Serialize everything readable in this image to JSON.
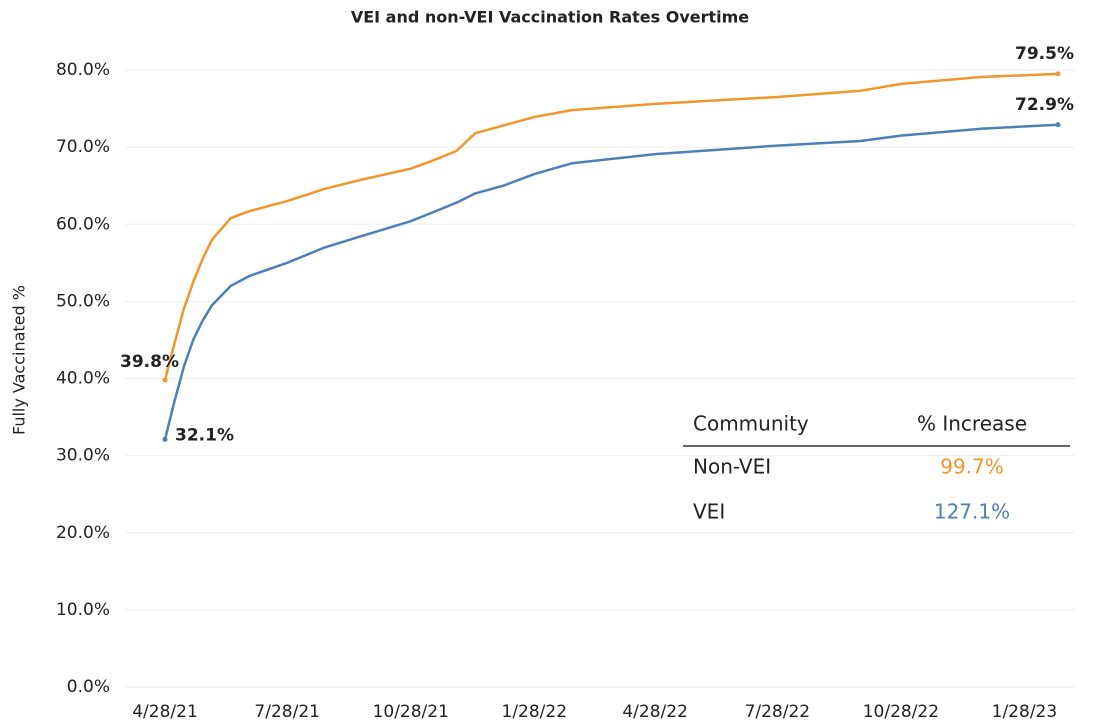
{
  "chart_data": {
    "type": "line",
    "title": "VEI and non-VEI Vaccination Rates Overtime",
    "y_label": "Fully Vaccinated %",
    "x": [
      "4/28/21",
      "5/5/21",
      "5/12/21",
      "5/19/21",
      "5/26/21",
      "6/2/21",
      "6/16/21",
      "6/30/21",
      "7/28/21",
      "8/25/21",
      "9/22/21",
      "10/28/21",
      "11/17/21",
      "12/1/21",
      "12/15/21",
      "1/5/22",
      "1/28/22",
      "2/25/22",
      "4/28/22",
      "7/28/22",
      "9/28/22",
      "10/28/22",
      "12/28/22",
      "2/22/23"
    ],
    "series": [
      {
        "name": "Non-VEI",
        "color": "#f0962e",
        "values": [
          39.8,
          44.5,
          49,
          52.5,
          55.5,
          58,
          60.8,
          61.7,
          63.0,
          64.6,
          65.8,
          67.2,
          68.5,
          69.5,
          71.8,
          72.8,
          73.9,
          74.8,
          75.6,
          76.5,
          77.3,
          78.2,
          79.1,
          79.5
        ],
        "value_labels": [
          "39.8%",
          null,
          null,
          null,
          null,
          null,
          null,
          null,
          null,
          null,
          null,
          null,
          null,
          null,
          null,
          null,
          null,
          null,
          null,
          null,
          null,
          null,
          null,
          "79.5%"
        ]
      },
      {
        "name": "VEI",
        "color": "#4f7fb8",
        "values": [
          32.1,
          37,
          41.5,
          45,
          47.5,
          49.5,
          52,
          53.3,
          55.0,
          57.0,
          58.5,
          60.4,
          61.8,
          62.8,
          64.0,
          65.0,
          66.5,
          67.9,
          69.1,
          70.2,
          70.8,
          71.5,
          72.4,
          72.9
        ],
        "value_labels": [
          "32.1%",
          null,
          null,
          null,
          null,
          null,
          null,
          null,
          null,
          null,
          null,
          null,
          null,
          null,
          null,
          null,
          null,
          null,
          null,
          null,
          null,
          null,
          null,
          "72.9%"
        ]
      }
    ],
    "xlim": [
      "4/28/21",
      "2/22/23"
    ],
    "xticks": [
      "4/28/21",
      "7/28/21",
      "10/28/21",
      "1/28/22",
      "4/28/22",
      "7/28/22",
      "10/28/22",
      "1/28/23"
    ],
    "ylim": [
      0,
      80
    ],
    "yticks": [
      {
        "value": 0,
        "label": "0.0%"
      },
      {
        "value": 10,
        "label": "10.0%"
      },
      {
        "value": 20,
        "label": "20.0%"
      },
      {
        "value": 30,
        "label": "30.0%"
      },
      {
        "value": 40,
        "label": "40.0%"
      },
      {
        "value": 50,
        "label": "50.0%"
      },
      {
        "value": 60,
        "label": "60.0%"
      },
      {
        "value": 70,
        "label": "70.0%"
      },
      {
        "value": 80,
        "label": "80.0%"
      }
    ],
    "grid": true,
    "table": {
      "columns": [
        "Community",
        "% Increase"
      ],
      "rows": [
        [
          "Non-VEI",
          "99.7%"
        ],
        [
          "VEI",
          "127.1%"
        ]
      ]
    }
  }
}
